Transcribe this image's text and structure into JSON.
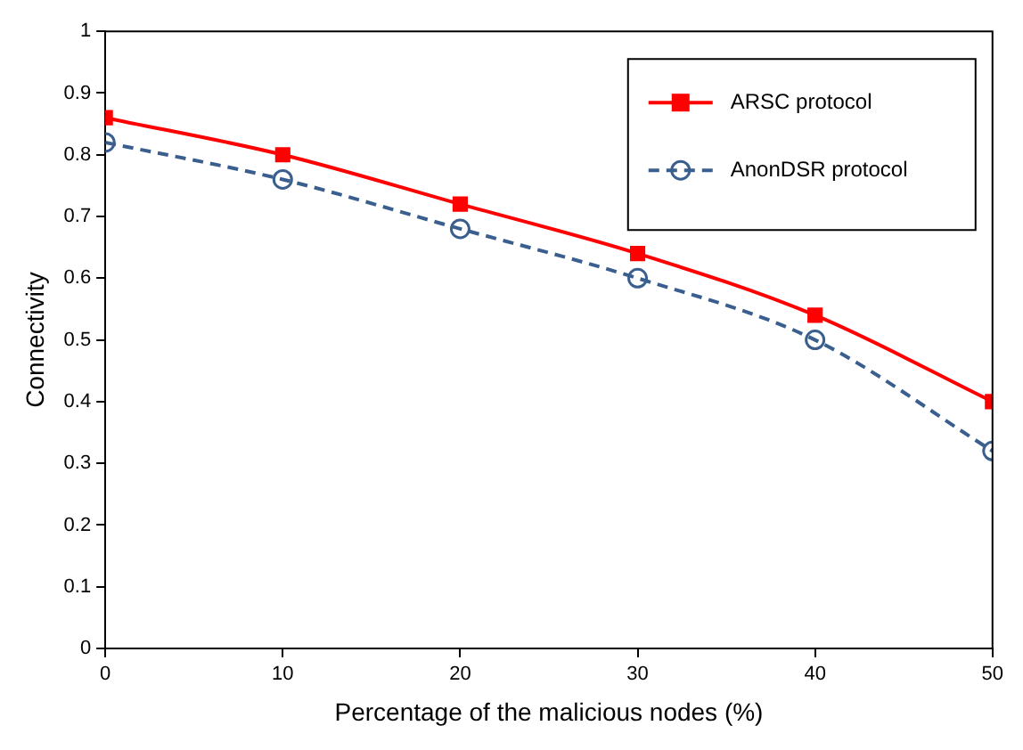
{
  "chart_data": {
    "type": "line",
    "xlabel": "Percentage of the malicious nodes (%)",
    "ylabel": "Connectivity",
    "x": [
      0,
      10,
      20,
      30,
      40,
      50
    ],
    "series": [
      {
        "name": "ARSC protocol",
        "color": "#ff0000",
        "values": [
          0.86,
          0.8,
          0.72,
          0.64,
          0.54,
          0.4
        ],
        "marker": "square",
        "line_style": "solid"
      },
      {
        "name": "AnonDSR protocol",
        "color": "#3a5f8f",
        "values": [
          0.82,
          0.76,
          0.68,
          0.6,
          0.5,
          0.32
        ],
        "marker": "circle",
        "line_style": "dashed"
      }
    ],
    "xlim": [
      0,
      50
    ],
    "xticks": [
      0,
      10,
      20,
      30,
      40,
      50
    ],
    "ylim": [
      0,
      1
    ],
    "yticks": [
      0,
      0.1,
      0.2,
      0.3,
      0.4,
      0.5,
      0.6,
      0.7,
      0.8,
      0.9,
      1
    ],
    "grid": false,
    "legend": "top right"
  }
}
